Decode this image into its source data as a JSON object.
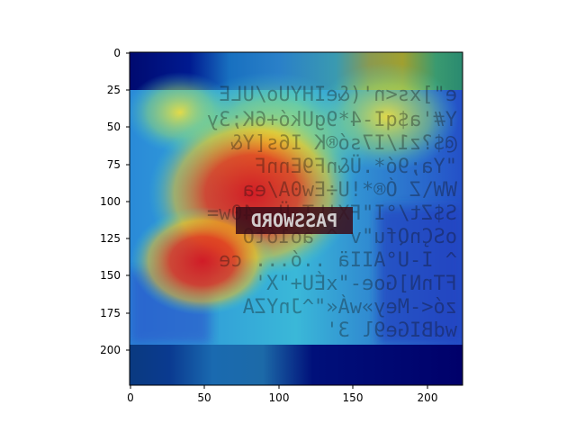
{
  "figure": {
    "x_ticks": [
      "0",
      "50",
      "100",
      "150",
      "200"
    ],
    "y_ticks": [
      "0",
      "25",
      "50",
      "75",
      "100",
      "125",
      "150",
      "175",
      "200"
    ],
    "x_tick_values": [
      0,
      50,
      100,
      150,
      200
    ],
    "y_tick_values": [
      0,
      25,
      50,
      75,
      100,
      125,
      150,
      175,
      200
    ],
    "xlim": [
      0,
      224
    ],
    "ylim": [
      224,
      0
    ],
    "overlay": "jet heatmap (saliency map) over mirrored text image",
    "center_word": "PASSWORD",
    "colors": {
      "hot": "#e02020",
      "warm": "#f4d21c",
      "cool": "#3ad0d0",
      "cold": "#1a2a9a",
      "edge": "#00007f"
    }
  }
}
